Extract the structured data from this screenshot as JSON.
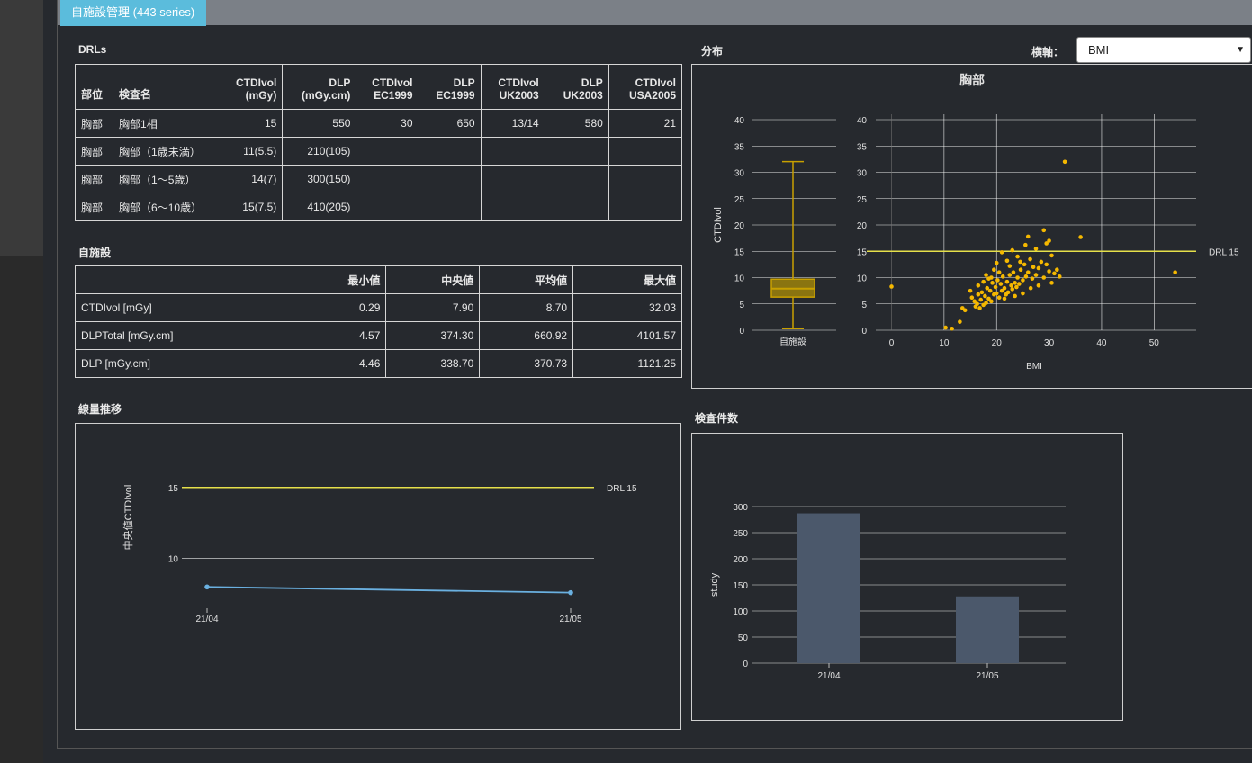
{
  "tab": {
    "label": "自施設管理 (443 series)"
  },
  "drls": {
    "title": "DRLs",
    "headers": [
      [
        "部位"
      ],
      [
        "検査名"
      ],
      [
        "CTDIvol",
        "(mGy)"
      ],
      [
        "DLP",
        "(mGy.cm)"
      ],
      [
        "CTDIvol",
        "EC1999"
      ],
      [
        "DLP",
        "EC1999"
      ],
      [
        "CTDIvol",
        "UK2003"
      ],
      [
        "DLP",
        "UK2003"
      ],
      [
        "CTDIvol",
        "USA2005"
      ]
    ],
    "rows": [
      [
        "胸部",
        "胸部1相",
        "15",
        "550",
        "30",
        "650",
        "13/14",
        "580",
        "21"
      ],
      [
        "胸部",
        "胸部（1歳未満）",
        "11(5.5)",
        "210(105)",
        "",
        "",
        "",
        "",
        ""
      ],
      [
        "胸部",
        "胸部（1〜5歳）",
        "14(7)",
        "300(150)",
        "",
        "",
        "",
        "",
        ""
      ],
      [
        "胸部",
        "胸部（6〜10歳）",
        "15(7.5)",
        "410(205)",
        "",
        "",
        "",
        "",
        ""
      ]
    ]
  },
  "own": {
    "title": "自施設",
    "headers": [
      "",
      "最小値",
      "中央値",
      "平均値",
      "最大値"
    ],
    "rows": [
      [
        "CTDIvol [mGy]",
        "0.29",
        "7.90",
        "8.70",
        "32.03"
      ],
      [
        "DLPTotal [mGy.cm]",
        "4.57",
        "374.30",
        "660.92",
        "4101.57"
      ],
      [
        "DLP [mGy.cm]",
        "4.46",
        "338.70",
        "370.73",
        "1121.25"
      ]
    ]
  },
  "distribution": {
    "title": "分布",
    "axis_label": "横軸：",
    "axis_value": "BMI"
  },
  "trend_title": "線量推移",
  "count_title": "検査件数",
  "chart_data": [
    {
      "type": "box+scatter",
      "title": "胸部",
      "ylabel": "CTDIvol",
      "xlabel": "BMI",
      "ylim": [
        0,
        40
      ],
      "yticks": [
        "0",
        "5",
        "10",
        "15",
        "20",
        "25",
        "30",
        "35",
        "40"
      ],
      "xlim": [
        -3,
        58
      ],
      "xticks": [
        "0",
        "10",
        "20",
        "30",
        "40",
        "50"
      ],
      "box": {
        "category": "自施設",
        "min": 0.29,
        "q1": 6.3,
        "median": 7.9,
        "q3": 9.7,
        "max": 32.03,
        "color": "#c8a000"
      },
      "drl": {
        "value": 15,
        "label": "DRL 15",
        "color": "#e5e04a"
      },
      "scatter_color": "#f5b800",
      "points": [
        [
          0,
          8.3
        ],
        [
          10.3,
          0.5
        ],
        [
          11.5,
          0.3
        ],
        [
          13,
          1.6
        ],
        [
          13.5,
          4.2
        ],
        [
          14,
          3.8
        ],
        [
          15,
          7.5
        ],
        [
          15.3,
          6.2
        ],
        [
          15.8,
          5.5
        ],
        [
          16,
          4.5
        ],
        [
          16.3,
          5.0
        ],
        [
          16.5,
          6.8
        ],
        [
          16.8,
          4.2
        ],
        [
          17,
          5.8
        ],
        [
          17.2,
          7.2
        ],
        [
          17.5,
          4.8
        ],
        [
          17.8,
          6.5
        ],
        [
          18,
          5.2
        ],
        [
          18.2,
          8.0
        ],
        [
          18.5,
          6.0
        ],
        [
          18.8,
          7.5
        ],
        [
          19,
          5.5
        ],
        [
          19.2,
          9.0
        ],
        [
          19.5,
          6.8
        ],
        [
          19.8,
          8.2
        ],
        [
          20,
          7.0
        ],
        [
          20.2,
          9.5
        ],
        [
          20.5,
          6.2
        ],
        [
          20.8,
          8.8
        ],
        [
          21,
          7.5
        ],
        [
          21.2,
          10.2
        ],
        [
          21.5,
          8.0
        ],
        [
          21.8,
          6.8
        ],
        [
          22,
          9.2
        ],
        [
          22.2,
          7.2
        ],
        [
          22.5,
          10.5
        ],
        [
          22.8,
          8.5
        ],
        [
          23,
          7.8
        ],
        [
          23.2,
          11.0
        ],
        [
          23.5,
          9.0
        ],
        [
          23.8,
          8.2
        ],
        [
          24,
          10.0
        ],
        [
          24.3,
          8.8
        ],
        [
          24.6,
          11.5
        ],
        [
          25,
          9.5
        ],
        [
          25.3,
          12.5
        ],
        [
          25.6,
          10.2
        ],
        [
          26,
          11.0
        ],
        [
          26.4,
          13.5
        ],
        [
          26.8,
          9.8
        ],
        [
          27,
          12.0
        ],
        [
          27.5,
          10.5
        ],
        [
          28,
          11.8
        ],
        [
          28.5,
          13.0
        ],
        [
          29,
          10.0
        ],
        [
          29.5,
          12.5
        ],
        [
          30,
          11.2
        ],
        [
          30.5,
          14.2
        ],
        [
          31,
          10.8
        ],
        [
          31.5,
          11.5
        ],
        [
          32,
          10.2
        ],
        [
          19.5,
          11.5
        ],
        [
          20,
          12.8
        ],
        [
          21,
          14.8
        ],
        [
          22,
          13.2
        ],
        [
          23,
          15.2
        ],
        [
          24,
          14.0
        ],
        [
          25.5,
          16.2
        ],
        [
          26,
          17.8
        ],
        [
          27.5,
          15.5
        ],
        [
          29,
          19.0
        ],
        [
          29.5,
          16.5
        ],
        [
          30,
          17.0
        ],
        [
          33,
          32.0
        ],
        [
          36,
          17.7
        ],
        [
          54,
          11.0
        ],
        [
          18,
          10.5
        ],
        [
          19,
          10.0
        ],
        [
          20.5,
          11.0
        ],
        [
          22.5,
          12.2
        ],
        [
          24.5,
          13.0
        ],
        [
          16.5,
          8.5
        ],
        [
          17.5,
          9.2
        ],
        [
          18.5,
          9.8
        ],
        [
          21.5,
          6.0
        ],
        [
          23.5,
          6.5
        ],
        [
          25,
          7.0
        ],
        [
          26.5,
          8.0
        ],
        [
          28,
          8.5
        ],
        [
          30.5,
          9.0
        ]
      ]
    },
    {
      "type": "line",
      "ylabel": "中央値CTDIvol",
      "categories": [
        "21/04",
        "21/05"
      ],
      "values": [
        8.0,
        7.6
      ],
      "ylim": [
        6.5,
        16
      ],
      "yticks": [
        "10",
        "15"
      ],
      "drl": {
        "value": 15,
        "label": "DRL 15",
        "color": "#e5e04a"
      },
      "line_color": "#6ab0e0"
    },
    {
      "type": "bar",
      "ylabel": "study",
      "categories": [
        "21/04",
        "21/05"
      ],
      "values": [
        287,
        128
      ],
      "ylim": [
        0,
        300
      ],
      "yticks": [
        "0",
        "50",
        "100",
        "150",
        "200",
        "250",
        "300"
      ],
      "bar_color": "#4b586b"
    }
  ]
}
